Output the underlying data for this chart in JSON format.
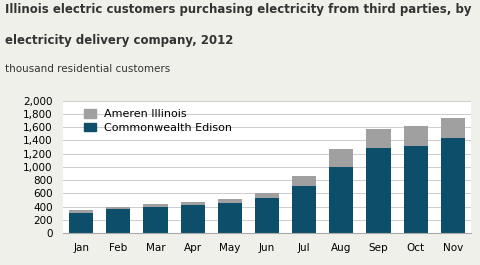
{
  "months": [
    "Jan",
    "Feb",
    "Mar",
    "Apr",
    "May",
    "Jun",
    "Jul",
    "Aug",
    "Sep",
    "Oct",
    "Nov"
  ],
  "commonwealth_edison": [
    310,
    365,
    390,
    420,
    455,
    530,
    720,
    1005,
    1280,
    1310,
    1440
  ],
  "ameren_illinois": [
    45,
    35,
    50,
    55,
    60,
    80,
    140,
    270,
    290,
    310,
    300
  ],
  "color_commonwealth": "#0d4f6b",
  "color_ameren": "#a0a0a0",
  "title_line1": "Illinois electric customers purchasing electricity from third parties, by",
  "title_line2": "electricity delivery company, 2012",
  "ylabel": "thousand residential customers",
  "ylim": [
    0,
    2000
  ],
  "yticks": [
    0,
    200,
    400,
    600,
    800,
    1000,
    1200,
    1400,
    1600,
    1800,
    2000
  ],
  "ytick_labels": [
    "0",
    "200",
    "400",
    "600",
    "800",
    "1,000",
    "1,200",
    "1,400",
    "1,600",
    "1,800",
    "2,000"
  ],
  "background_color": "#f0f0eb",
  "plot_bg_color": "#ffffff",
  "title_color": "#333333",
  "title_fontsize": 8.5,
  "legend_fontsize": 8,
  "axis_fontsize": 7.5
}
